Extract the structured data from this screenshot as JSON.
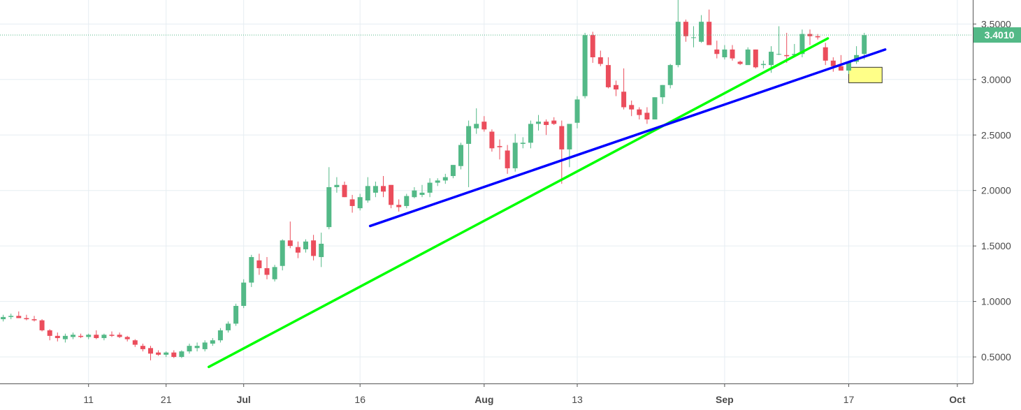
{
  "chart_data": {
    "type": "candlestick",
    "grid": true,
    "y_axis": {
      "position": "right",
      "range": [
        0.25,
        3.75
      ],
      "ticks": [
        "0.5000",
        "1.0000",
        "1.5000",
        "2.0000",
        "2.5000",
        "3.0000",
        "3.5000"
      ]
    },
    "x_axis": {
      "ticks": [
        {
          "label": "11",
          "day": 11,
          "bold": false
        },
        {
          "label": "21",
          "day": 21,
          "bold": false
        },
        {
          "label": "Jul",
          "day": 31,
          "bold": true
        },
        {
          "label": "16",
          "day": 46,
          "bold": false
        },
        {
          "label": "Aug",
          "day": 62,
          "bold": true
        },
        {
          "label": "13",
          "day": 74,
          "bold": false
        },
        {
          "label": "Sep",
          "day": 93,
          "bold": true
        },
        {
          "label": "17",
          "day": 109,
          "bold": false
        },
        {
          "label": "Oct",
          "day": 123,
          "bold": true
        }
      ]
    },
    "current_price": {
      "label": "3.4010",
      "value": 3.401,
      "color": "#53b987"
    },
    "colors": {
      "up": "#53b987",
      "down": "#eb4d5c",
      "grid": "#e6edf2"
    },
    "candles_ohlc": [
      [
        0.84,
        0.88,
        0.82,
        0.86
      ],
      [
        0.86,
        0.89,
        0.84,
        0.87
      ],
      [
        0.87,
        0.91,
        0.85,
        0.85
      ],
      [
        0.85,
        0.88,
        0.83,
        0.84
      ],
      [
        0.84,
        0.87,
        0.82,
        0.83
      ],
      [
        0.83,
        0.84,
        0.73,
        0.74
      ],
      [
        0.74,
        0.75,
        0.65,
        0.69
      ],
      [
        0.69,
        0.72,
        0.64,
        0.67
      ],
      [
        0.66,
        0.71,
        0.63,
        0.69
      ],
      [
        0.68,
        0.72,
        0.66,
        0.7
      ],
      [
        0.69,
        0.71,
        0.67,
        0.68
      ],
      [
        0.68,
        0.71,
        0.66,
        0.7
      ],
      [
        0.7,
        0.74,
        0.66,
        0.67
      ],
      [
        0.67,
        0.71,
        0.65,
        0.7
      ],
      [
        0.7,
        0.73,
        0.68,
        0.69
      ],
      [
        0.7,
        0.72,
        0.67,
        0.68
      ],
      [
        0.68,
        0.69,
        0.64,
        0.66
      ],
      [
        0.65,
        0.66,
        0.59,
        0.61
      ],
      [
        0.6,
        0.62,
        0.55,
        0.57
      ],
      [
        0.58,
        0.6,
        0.47,
        0.53
      ],
      [
        0.54,
        0.56,
        0.51,
        0.52
      ],
      [
        0.52,
        0.55,
        0.5,
        0.54
      ],
      [
        0.54,
        0.56,
        0.49,
        0.5
      ],
      [
        0.5,
        0.56,
        0.49,
        0.55
      ],
      [
        0.55,
        0.62,
        0.53,
        0.6
      ],
      [
        0.58,
        0.63,
        0.55,
        0.6
      ],
      [
        0.57,
        0.65,
        0.55,
        0.63
      ],
      [
        0.62,
        0.67,
        0.6,
        0.65
      ],
      [
        0.65,
        0.76,
        0.63,
        0.74
      ],
      [
        0.74,
        0.82,
        0.72,
        0.8
      ],
      [
        0.8,
        0.98,
        0.78,
        0.96
      ],
      [
        0.96,
        1.2,
        0.94,
        1.17
      ],
      [
        1.17,
        1.42,
        1.13,
        1.4
      ],
      [
        1.37,
        1.43,
        1.24,
        1.3
      ],
      [
        1.3,
        1.4,
        1.2,
        1.24
      ],
      [
        1.2,
        1.33,
        1.18,
        1.31
      ],
      [
        1.32,
        1.56,
        1.28,
        1.55
      ],
      [
        1.55,
        1.72,
        1.48,
        1.5
      ],
      [
        1.49,
        1.54,
        1.39,
        1.44
      ],
      [
        1.47,
        1.56,
        1.44,
        1.54
      ],
      [
        1.55,
        1.6,
        1.37,
        1.41
      ],
      [
        1.4,
        1.62,
        1.31,
        1.52
      ],
      [
        1.67,
        2.21,
        1.65,
        2.03
      ],
      [
        2.03,
        2.12,
        1.98,
        2.05
      ],
      [
        2.05,
        2.08,
        1.94,
        1.94
      ],
      [
        1.92,
        1.96,
        1.8,
        1.86
      ],
      [
        1.84,
        1.97,
        1.82,
        1.94
      ],
      [
        1.91,
        2.12,
        1.89,
        2.04
      ],
      [
        1.98,
        2.08,
        1.94,
        2.04
      ],
      [
        2.04,
        2.13,
        1.94,
        1.99
      ],
      [
        2.05,
        2.05,
        1.84,
        1.87
      ],
      [
        1.87,
        1.92,
        1.81,
        1.85
      ],
      [
        1.86,
        1.97,
        1.84,
        1.95
      ],
      [
        1.94,
        2.03,
        1.93,
        2.0
      ],
      [
        1.96,
        2.05,
        1.94,
        1.98
      ],
      [
        1.98,
        2.11,
        1.94,
        2.07
      ],
      [
        2.07,
        2.11,
        2.04,
        2.09
      ],
      [
        2.09,
        2.15,
        2.06,
        2.12
      ],
      [
        2.13,
        2.23,
        2.11,
        2.23
      ],
      [
        2.22,
        2.43,
        2.19,
        2.41
      ],
      [
        2.42,
        2.63,
        2.03,
        2.58
      ],
      [
        2.56,
        2.74,
        2.51,
        2.6
      ],
      [
        2.62,
        2.67,
        2.53,
        2.55
      ],
      [
        2.53,
        2.55,
        2.35,
        2.38
      ],
      [
        2.4,
        2.46,
        2.28,
        2.39
      ],
      [
        2.36,
        2.41,
        2.15,
        2.2
      ],
      [
        2.2,
        2.51,
        2.17,
        2.43
      ],
      [
        2.42,
        2.48,
        2.38,
        2.43
      ],
      [
        2.43,
        2.63,
        2.38,
        2.6
      ],
      [
        2.6,
        2.68,
        2.54,
        2.62
      ],
      [
        2.62,
        2.64,
        2.5,
        2.59
      ],
      [
        2.63,
        2.66,
        2.59,
        2.6
      ],
      [
        2.58,
        2.63,
        2.06,
        2.37
      ],
      [
        2.37,
        2.46,
        2.21,
        2.6
      ],
      [
        2.61,
        2.85,
        2.56,
        2.82
      ],
      [
        2.85,
        3.42,
        2.83,
        3.4
      ],
      [
        3.4,
        3.43,
        3.15,
        3.2
      ],
      [
        3.2,
        3.26,
        3.12,
        3.14
      ],
      [
        3.13,
        3.2,
        2.92,
        2.93
      ],
      [
        2.95,
        2.99,
        2.85,
        2.91
      ],
      [
        2.89,
        3.1,
        2.73,
        2.75
      ],
      [
        2.77,
        2.81,
        2.67,
        2.73
      ],
      [
        2.73,
        2.75,
        2.64,
        2.68
      ],
      [
        2.7,
        2.75,
        2.6,
        2.64
      ],
      [
        2.64,
        2.84,
        2.64,
        2.84
      ],
      [
        2.84,
        2.95,
        2.78,
        2.95
      ],
      [
        2.95,
        3.14,
        2.92,
        3.13
      ],
      [
        3.13,
        3.75,
        3.11,
        3.52
      ],
      [
        3.52,
        3.54,
        3.34,
        3.39
      ],
      [
        3.38,
        3.48,
        3.29,
        3.38
      ],
      [
        3.34,
        3.58,
        3.33,
        3.52
      ],
      [
        3.52,
        3.63,
        3.32,
        3.31
      ],
      [
        3.27,
        3.35,
        3.19,
        3.23
      ],
      [
        3.2,
        3.31,
        3.18,
        3.27
      ],
      [
        3.27,
        3.31,
        3.17,
        3.19
      ],
      [
        3.16,
        3.17,
        3.13,
        3.14
      ],
      [
        3.13,
        3.29,
        3.14,
        3.27
      ],
      [
        3.27,
        3.27,
        3.1,
        3.11
      ],
      [
        3.13,
        3.17,
        3.1,
        3.14
      ],
      [
        3.13,
        3.3,
        3.06,
        3.25
      ],
      [
        3.23,
        3.48,
        3.22,
        3.23
      ],
      [
        3.22,
        3.42,
        3.15,
        3.21
      ],
      [
        3.22,
        3.32,
        3.21,
        3.23
      ],
      [
        3.23,
        3.45,
        3.2,
        3.41
      ],
      [
        3.41,
        3.45,
        3.31,
        3.39
      ],
      [
        3.39,
        3.41,
        3.36,
        3.38
      ],
      [
        3.29,
        3.33,
        3.13,
        3.17
      ],
      [
        3.17,
        3.2,
        3.07,
        3.12
      ],
      [
        3.12,
        3.22,
        3.08,
        3.08
      ],
      [
        3.08,
        3.16,
        3.05,
        3.16
      ],
      [
        3.16,
        3.3,
        3.14,
        3.22
      ],
      [
        3.23,
        3.42,
        3.18,
        3.4
      ]
    ],
    "annotations": [
      {
        "type": "trendline",
        "color": "#00ff00",
        "from": {
          "day": 26.5,
          "value": 0.41
        },
        "to": {
          "day": 106.3,
          "value": 3.37
        }
      },
      {
        "type": "trendline",
        "color": "#0000ff",
        "from": {
          "day": 47.3,
          "value": 1.68
        },
        "to": {
          "day": 113.7,
          "value": 3.27
        }
      },
      {
        "type": "box",
        "fill": "#ffff88",
        "from": {
          "day": 109,
          "value": 2.97
        },
        "to": {
          "day": 113.3,
          "value": 3.11
        }
      }
    ]
  }
}
